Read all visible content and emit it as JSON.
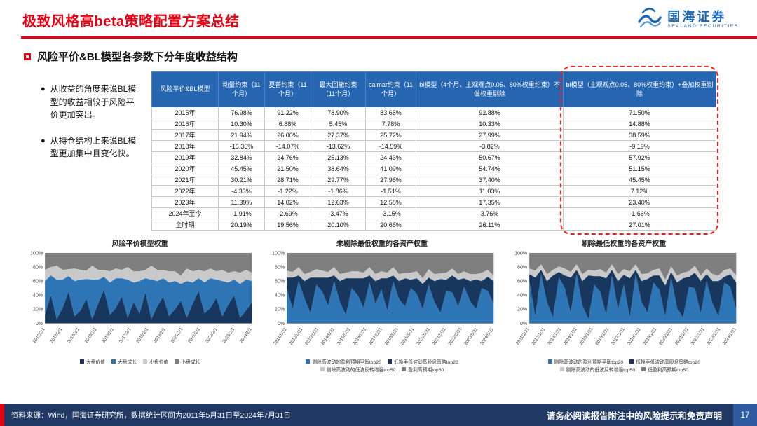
{
  "header": {
    "title": "极致风格高beta策略配置方案总结",
    "logo": {
      "name_cn": "国海证券",
      "name_en": "SEALAND SECURITIES"
    }
  },
  "section_title": "风险平价&BL模型各参数下分年度收益结构",
  "bullets": [
    "从收益的角度来说BL模型的收益相较于风险平价更加突出。",
    "从持仓结构上来说BL模型更加集中且变化快。"
  ],
  "table": {
    "corner": "风险平价&BL模型",
    "columns": [
      "动量约束（11个月）",
      "夏普约束（11个月）",
      "最大回撤约束（11个月）",
      "calmar约束（11个月）",
      "bl模型（4个月、主观观点0.05、80%权重约束）不做权重剔除",
      "bl模型（主观观点0.05、80%权重约束）+叠加权重剔除"
    ],
    "rows": [
      {
        "label": "2015年",
        "values": [
          "76.98%",
          "91.22%",
          "78.90%",
          "83.65%",
          "92.88%",
          "71.50%"
        ]
      },
      {
        "label": "2016年",
        "values": [
          "10.30%",
          "6.88%",
          "5.45%",
          "7.78%",
          "10.33%",
          "14.88%"
        ]
      },
      {
        "label": "2017年",
        "values": [
          "21.94%",
          "26.00%",
          "27.37%",
          "25.72%",
          "27.99%",
          "38.59%"
        ]
      },
      {
        "label": "2018年",
        "values": [
          "-15.35%",
          "-14.07%",
          "-13.62%",
          "-14.59%",
          "-3.82%",
          "-9.19%"
        ]
      },
      {
        "label": "2019年",
        "values": [
          "32.84%",
          "24.76%",
          "25.13%",
          "24.43%",
          "50.67%",
          "57.92%"
        ]
      },
      {
        "label": "2020年",
        "values": [
          "45.45%",
          "21.50%",
          "38.64%",
          "41.09%",
          "54.74%",
          "51.15%"
        ]
      },
      {
        "label": "2021年",
        "values": [
          "30.21%",
          "28.71%",
          "29.77%",
          "27.96%",
          "37.40%",
          "45.45%"
        ]
      },
      {
        "label": "2022年",
        "values": [
          "-4.33%",
          "-1.22%",
          "-1.86%",
          "-1.51%",
          "11.03%",
          "7.12%"
        ]
      },
      {
        "label": "2023年",
        "values": [
          "11.39%",
          "14.02%",
          "12.63%",
          "12.58%",
          "17.35%",
          "23.40%"
        ]
      },
      {
        "label": "2024年至今",
        "values": [
          "-1.91%",
          "-2.69%",
          "-3.47%",
          "-3.15%",
          "3.76%",
          "-1.66%"
        ]
      },
      {
        "label": "全时期",
        "values": [
          "20.19%",
          "19.56%",
          "20.10%",
          "20.66%",
          "26.11%",
          "27.01%"
        ]
      }
    ],
    "highlight_color": "#ff1a1a"
  },
  "chart_data": [
    {
      "type": "area",
      "title": "风险平价模型权重",
      "ylim": [
        0,
        100
      ],
      "y_ticks": [
        "0%",
        "20%",
        "40%",
        "60%",
        "80%",
        "100%"
      ],
      "x_labels": [
        "2012/2/1",
        "2013/2/1",
        "2014/2/1",
        "2015/2/1",
        "2016/2/1",
        "2017/2/1",
        "2018/2/1",
        "2019/2/1",
        "2020/2/1",
        "2021/2/1",
        "2022/2/1",
        "2023/2/1",
        "2024/2/1"
      ],
      "series": [
        {
          "name": "大盘价值",
          "color": "#17375e",
          "values": [
            12,
            40,
            6,
            22,
            45,
            10,
            18,
            35,
            6,
            28,
            48,
            12,
            22,
            38,
            8,
            30,
            14,
            44,
            6,
            24,
            38,
            10,
            20,
            32,
            8,
            28,
            46,
            14,
            22,
            36,
            10,
            26,
            40,
            8,
            18,
            30
          ]
        },
        {
          "name": "大盘成长",
          "color": "#2e75b6",
          "values": [
            48,
            28,
            56,
            40,
            22,
            50,
            44,
            28,
            56,
            34,
            18,
            46,
            42,
            26,
            54,
            28,
            46,
            20,
            56,
            36,
            26,
            48,
            40,
            24,
            52,
            30,
            18,
            44,
            42,
            26,
            50,
            32,
            22,
            48,
            44,
            30
          ]
        },
        {
          "name": "小盘价值",
          "color": "#c9c9c9",
          "values": [
            16,
            12,
            20,
            14,
            10,
            18,
            14,
            12,
            20,
            14,
            10,
            16,
            14,
            12,
            18,
            16,
            14,
            12,
            20,
            16,
            12,
            16,
            14,
            12,
            18,
            16,
            12,
            16,
            14,
            12,
            16,
            14,
            12,
            16,
            14,
            12
          ]
        },
        {
          "name": "小盘成长",
          "color": "#7f7f7f",
          "values": [
            24,
            20,
            18,
            24,
            23,
            22,
            24,
            25,
            18,
            24,
            24,
            26,
            22,
            24,
            20,
            26,
            26,
            24,
            18,
            24,
            24,
            26,
            26,
            32,
            22,
            26,
            24,
            26,
            22,
            26,
            24,
            28,
            26,
            28,
            24,
            28
          ]
        }
      ]
    },
    {
      "type": "area",
      "title": "未剔除最低权重的各资产权重",
      "ylim": [
        0,
        100
      ],
      "y_ticks": [
        "0%",
        "20%",
        "40%",
        "60%",
        "80%",
        "100%"
      ],
      "x_labels": [
        "2011/5/31",
        "2012/5/31",
        "2013/5/31",
        "2014/5/31",
        "2015/5/31",
        "2016/5/31",
        "2017/5/31",
        "2018/5/31",
        "2019/5/31",
        "2020/5/31",
        "2021/5/31",
        "2022/5/31",
        "2023/5/31",
        "2024/5/31"
      ],
      "series": [
        {
          "name": "剔除高波动的盈利预期平衡top20",
          "color": "#2e75b6",
          "values": [
            50,
            20,
            60,
            35,
            15,
            55,
            45,
            25,
            60,
            30,
            12,
            50,
            40,
            22,
            58,
            28,
            48,
            18,
            60,
            34,
            24,
            50,
            42,
            20,
            55,
            30,
            15,
            46,
            44,
            24,
            52,
            32,
            20,
            50,
            46,
            28
          ]
        },
        {
          "name": "低换手低波动高股息策略top20",
          "color": "#17375e",
          "values": [
            15,
            45,
            8,
            25,
            50,
            10,
            20,
            40,
            8,
            30,
            52,
            14,
            24,
            42,
            10,
            32,
            16,
            46,
            8,
            26,
            40,
            12,
            22,
            36,
            10,
            30,
            48,
            16,
            24,
            38,
            12,
            28,
            42,
            10,
            20,
            32
          ]
        },
        {
          "name": "剔除高波动的低波反转增强top50",
          "color": "#c9c9c9",
          "values": [
            10,
            8,
            12,
            10,
            8,
            12,
            10,
            8,
            12,
            10,
            8,
            10,
            10,
            8,
            12,
            10,
            10,
            8,
            12,
            10,
            8,
            10,
            10,
            8,
            12,
            10,
            8,
            10,
            10,
            8,
            10,
            10,
            8,
            12,
            10,
            8
          ]
        },
        {
          "name": "盈利高预期top50",
          "color": "#7f7f7f",
          "values": [
            25,
            27,
            20,
            30,
            27,
            23,
            25,
            27,
            20,
            30,
            28,
            26,
            26,
            28,
            20,
            30,
            26,
            28,
            20,
            30,
            28,
            28,
            26,
            36,
            23,
            30,
            29,
            28,
            22,
            30,
            26,
            30,
            30,
            28,
            24,
            32
          ]
        }
      ]
    },
    {
      "type": "area",
      "title": "剔除最低权重的各资产权重",
      "ylim": [
        0,
        100
      ],
      "y_ticks": [
        "0%",
        "20%",
        "40%",
        "60%",
        "80%",
        "100%"
      ],
      "x_labels": [
        "2011/1/31",
        "2012/1/31",
        "2013/1/31",
        "2014/1/31",
        "2015/1/31",
        "2016/1/31",
        "2017/1/31",
        "2018/1/31",
        "2019/1/31",
        "2020/1/31",
        "2021/1/31",
        "2022/1/31",
        "2023/1/31",
        "2024/1/31"
      ],
      "series": [
        {
          "name": "剔除高波动的盈利预期平衡top20",
          "color": "#2e75b6",
          "values": [
            60,
            10,
            70,
            30,
            8,
            65,
            50,
            15,
            70,
            25,
            6,
            55,
            45,
            12,
            68,
            20,
            55,
            8,
            70,
            30,
            15,
            58,
            48,
            10,
            65,
            22,
            8,
            52,
            50,
            14,
            60,
            28,
            10,
            58,
            52,
            20
          ]
        },
        {
          "name": "低换手低波动高股息策略top20",
          "color": "#17375e",
          "values": [
            10,
            55,
            6,
            30,
            60,
            8,
            18,
            50,
            6,
            35,
            62,
            12,
            22,
            52,
            8,
            40,
            14,
            56,
            6,
            30,
            48,
            10,
            20,
            44,
            8,
            36,
            56,
            14,
            22,
            46,
            10,
            32,
            50,
            8,
            18,
            38
          ]
        },
        {
          "name": "剔除高波动的低波反转增强top50",
          "color": "#c9c9c9",
          "values": [
            8,
            10,
            8,
            10,
            8,
            8,
            10,
            8,
            8,
            10,
            8,
            8,
            10,
            8,
            8,
            10,
            8,
            10,
            8,
            10,
            8,
            8,
            10,
            8,
            8,
            10,
            8,
            8,
            10,
            8,
            8,
            10,
            8,
            10,
            8,
            10
          ]
        },
        {
          "name": "低盈利高预期top50",
          "color": "#7f7f7f",
          "values": [
            22,
            25,
            16,
            30,
            24,
            19,
            22,
            27,
            16,
            30,
            24,
            25,
            23,
            28,
            16,
            30,
            23,
            26,
            16,
            30,
            29,
            24,
            22,
            38,
            19,
            32,
            28,
            26,
            18,
            32,
            22,
            30,
            32,
            24,
            22,
            32
          ]
        }
      ]
    }
  ],
  "footer": {
    "source": "资料来源：Wind，国海证券研究所，数据统计区间为2011年5月31日至2024年7月31日",
    "disclaimer": "请务必阅读报告附注中的风险提示和免责声明",
    "page": "17"
  }
}
